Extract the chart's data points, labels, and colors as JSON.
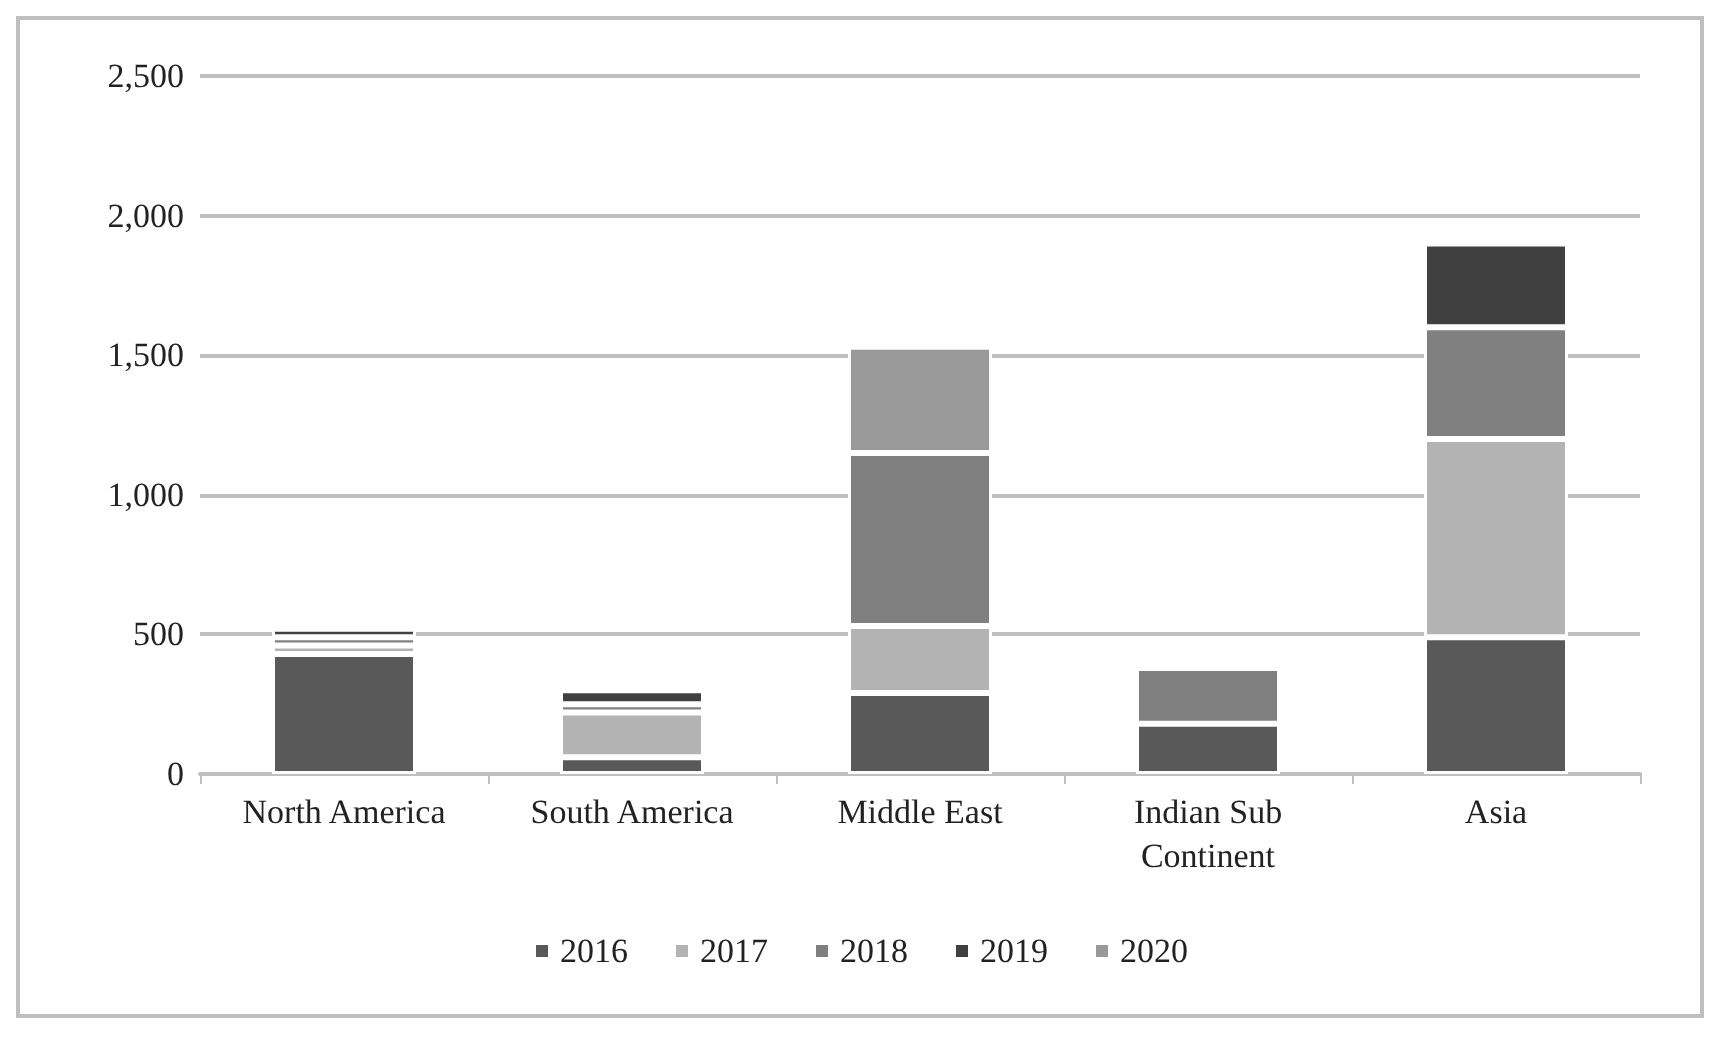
{
  "chart_data": {
    "type": "bar",
    "stacked": true,
    "categories": [
      "North America",
      "South America",
      "Middle East",
      "Indian Sub Continent",
      "Asia"
    ],
    "series": [
      {
        "name": "2016",
        "color": "#595959",
        "values": [
          430,
          60,
          290,
          180,
          490
        ]
      },
      {
        "name": "2017",
        "color": "#b3b3b3",
        "values": [
          30,
          160,
          240,
          null,
          710
        ]
      },
      {
        "name": "2018",
        "color": "#808080",
        "values": [
          30,
          30,
          620,
          200,
          400
        ]
      },
      {
        "name": "2019",
        "color": "#404040",
        "values": [
          30,
          50,
          null,
          null,
          300
        ]
      },
      {
        "name": "2020",
        "color": "#999999",
        "values": [
          null,
          null,
          380,
          null,
          null
        ]
      }
    ],
    "ylim": [
      0,
      2500
    ],
    "yticks": [
      0,
      500,
      {
        "value": 1000,
        "label": "1,000"
      },
      {
        "value": 1500,
        "label": "1,500"
      },
      {
        "value": 2000,
        "label": "2,000"
      },
      {
        "value": 2500,
        "label": "2,500"
      }
    ],
    "grid": "y",
    "legend": "bottom"
  }
}
